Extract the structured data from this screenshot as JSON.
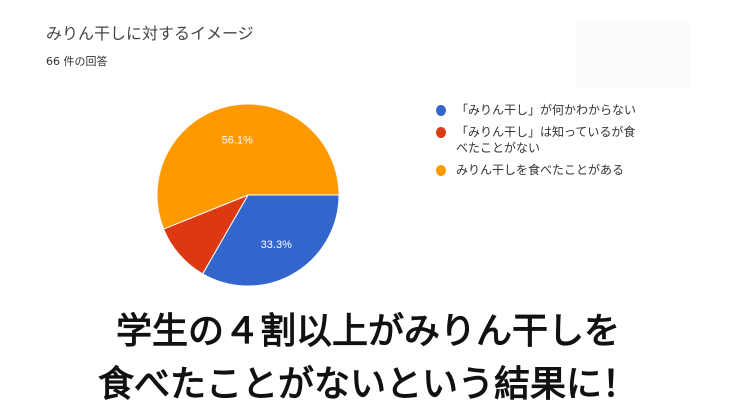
{
  "header": {
    "title": "みりん干しに対するイメージ",
    "responses": "66 件の回答"
  },
  "chart_data": {
    "type": "pie",
    "title": "みりん干しに対するイメージ",
    "categories": [
      "「みりん干し」が何かわからない",
      "「みりん干し」は知っているが食べたことがない",
      "みりん干しを食べたことがある"
    ],
    "values": [
      33.3,
      10.6,
      56.1
    ],
    "data_labels": [
      "33.3%",
      "",
      "56.1%"
    ],
    "colors": [
      "#3366cc",
      "#dc3912",
      "#ff9900"
    ],
    "legend_position": "right"
  },
  "legend": {
    "items": [
      {
        "label": "「みりん干し」が何かわからない",
        "color": "#3366cc"
      },
      {
        "label": "「みりん干し」は知っているが食べたことがない",
        "color": "#dc3912"
      },
      {
        "label": "みりん干しを食べたことがある",
        "color": "#ff9900"
      }
    ]
  },
  "caption": {
    "line1": "学生の４割以上がみりん干しを",
    "line2": "食べたことがないという結果に！"
  }
}
